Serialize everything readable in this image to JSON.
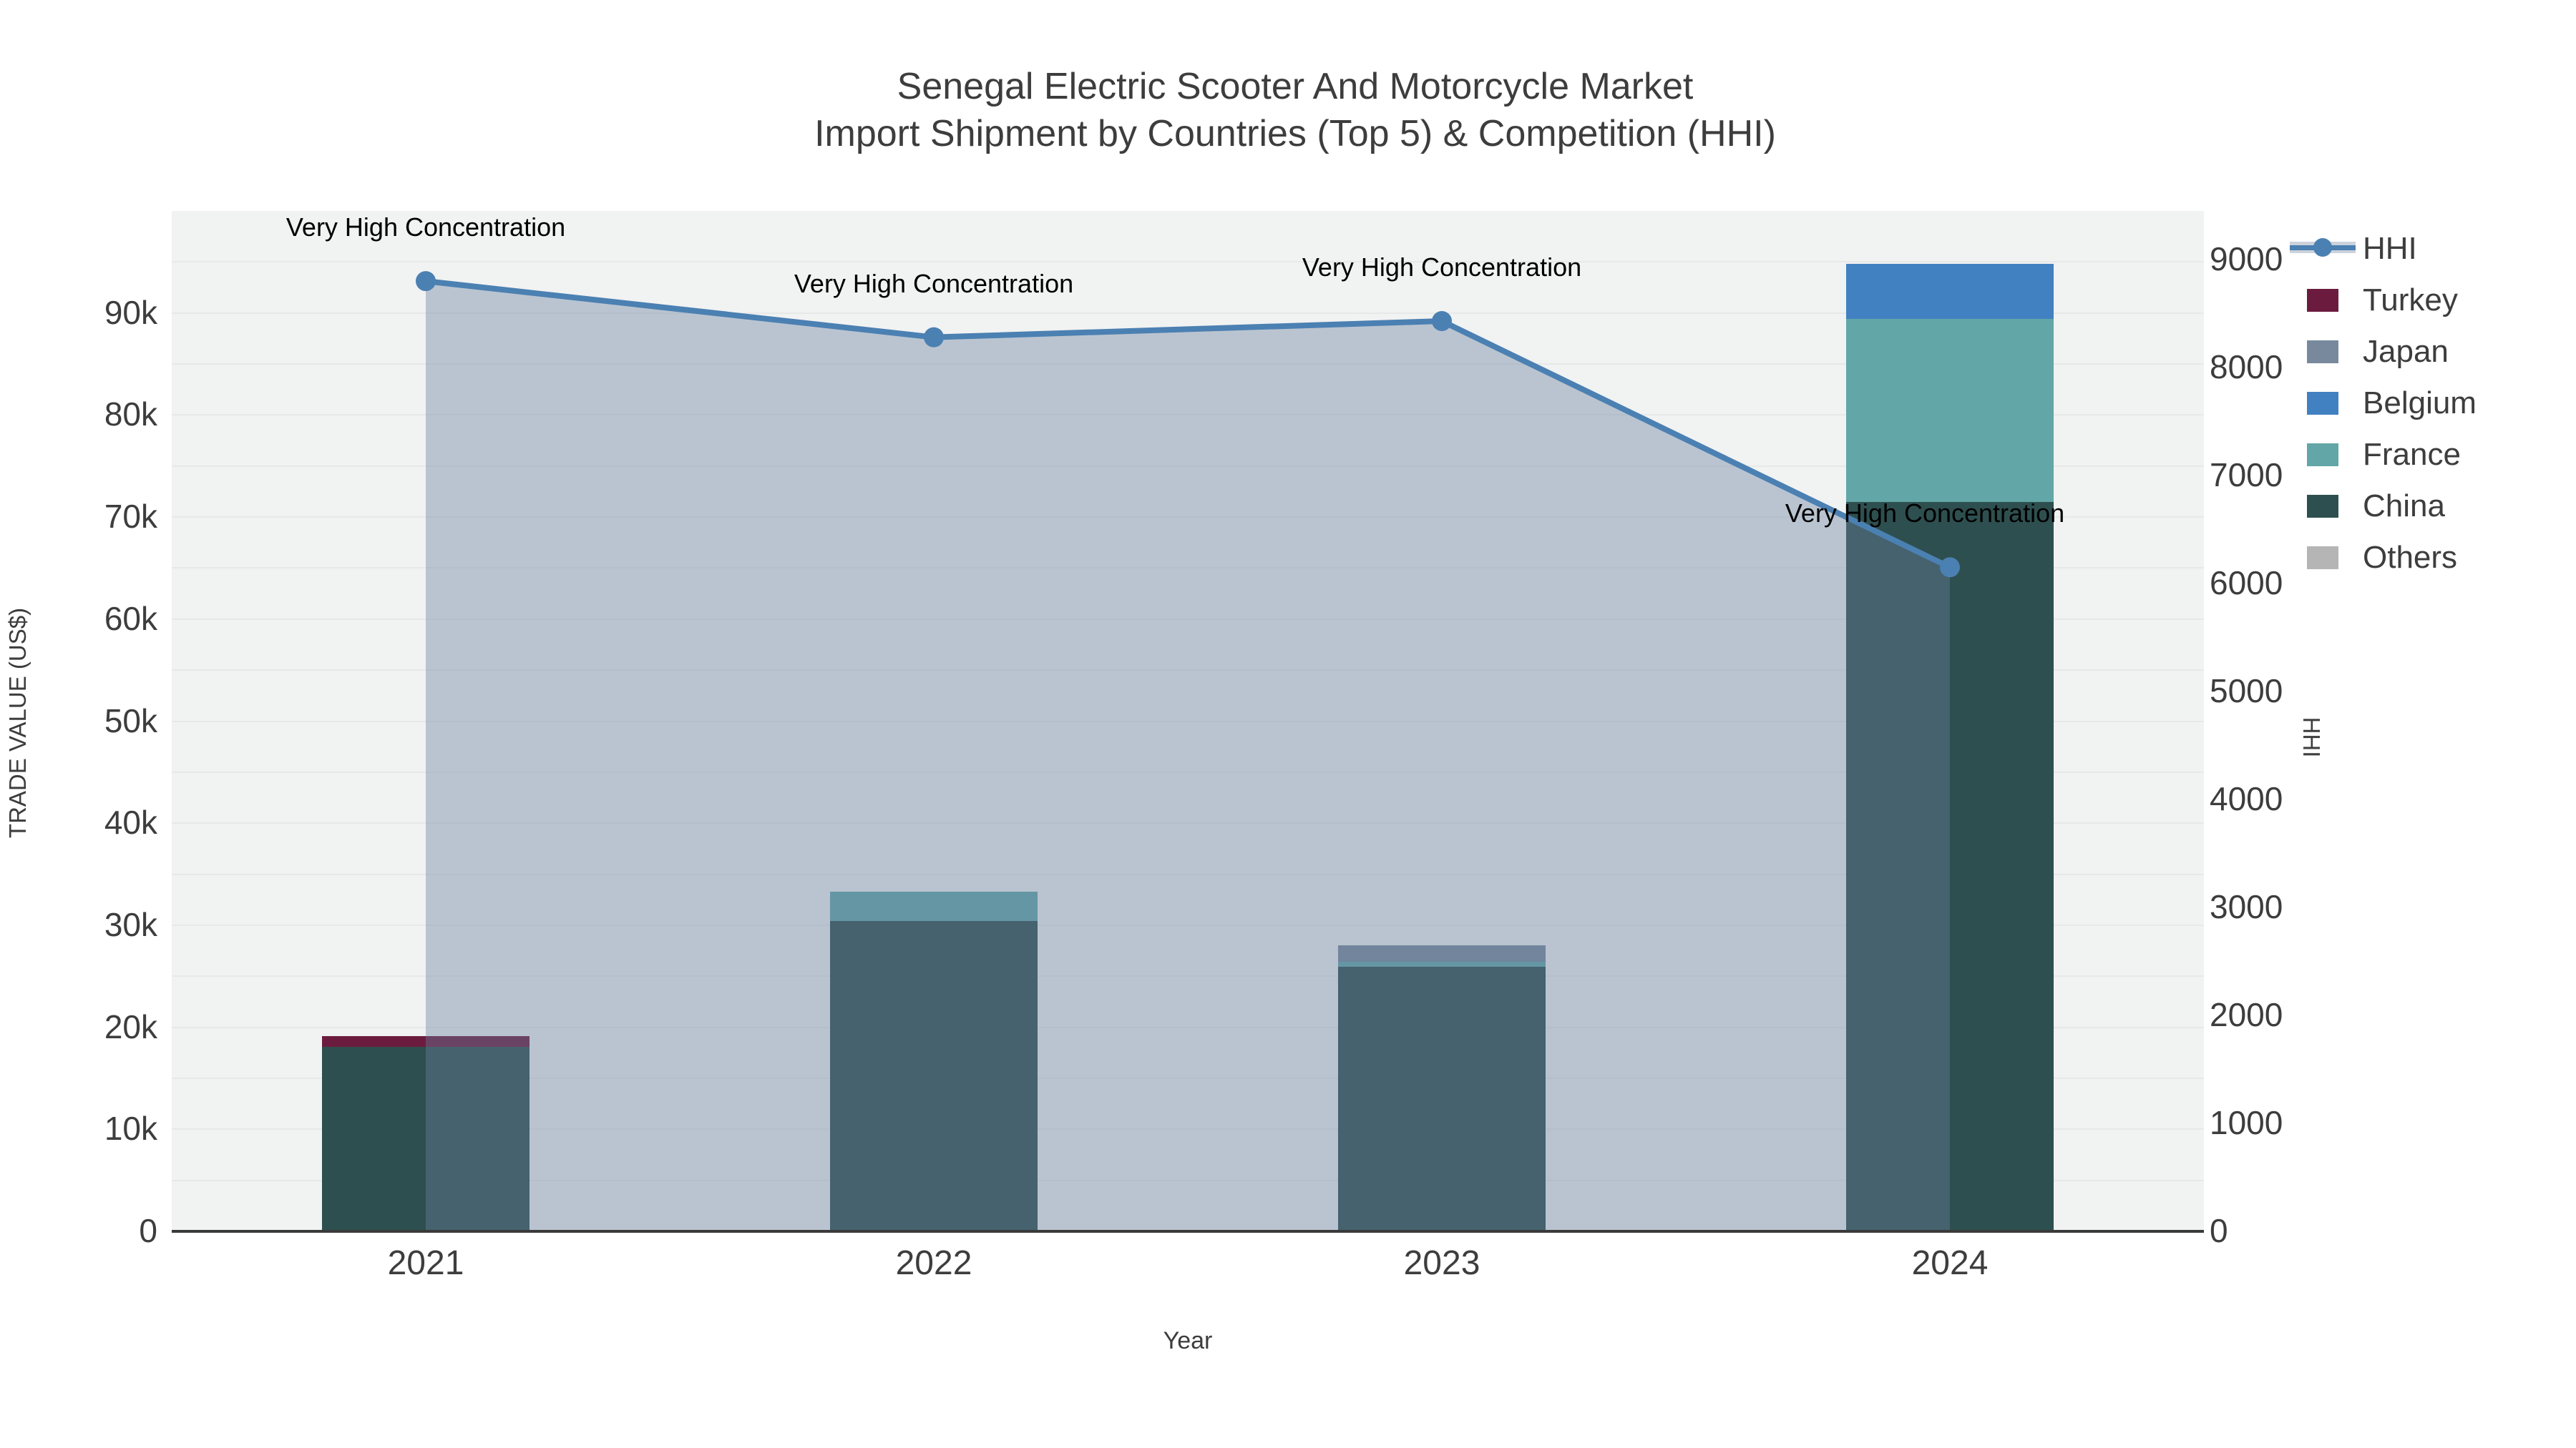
{
  "title": {
    "line1": "Senegal Electric Scooter And Motorcycle Market",
    "line2": "Import Shipment by Countries (Top 5) & Competition (HHI)"
  },
  "axes": {
    "x": {
      "title": "Year",
      "categories": [
        "2021",
        "2022",
        "2023",
        "2024"
      ]
    },
    "left": {
      "title": "TRADE VALUE (US$)",
      "tick_values": [
        0,
        10000,
        20000,
        30000,
        40000,
        50000,
        60000,
        70000,
        80000,
        90000
      ],
      "tick_labels": [
        "0",
        "10k",
        "20k",
        "30k",
        "40k",
        "50k",
        "60k",
        "70k",
        "80k",
        "90k"
      ],
      "max": 100000
    },
    "right": {
      "title": "HHI",
      "tick_values": [
        0,
        1000,
        2000,
        3000,
        4000,
        5000,
        6000,
        7000,
        8000,
        9000
      ],
      "tick_labels": [
        "0",
        "1000",
        "2000",
        "3000",
        "4000",
        "5000",
        "6000",
        "7000",
        "8000",
        "9000"
      ],
      "max": 9450
    }
  },
  "legend": {
    "items": [
      {
        "label": "HHI",
        "type": "line",
        "color": "#4b80b2"
      },
      {
        "label": "Turkey",
        "type": "box",
        "color": "#6b1c3e"
      },
      {
        "label": "Japan",
        "type": "box",
        "color": "#78899d"
      },
      {
        "label": "Belgium",
        "type": "box",
        "color": "#4181c2"
      },
      {
        "label": "France",
        "type": "box",
        "color": "#63a6a8"
      },
      {
        "label": "China",
        "type": "box",
        "color": "#2e4f4f"
      },
      {
        "label": "Others",
        "type": "box",
        "color": "#b5b5b5"
      }
    ]
  },
  "chart_data": {
    "type": "bar",
    "variant": "stacked bars (left axis) + line with area fill (right axis)",
    "title": "Senegal Electric Scooter And Motorcycle Market — Import Shipment by Countries (Top 5) & Competition (HHI)",
    "categories": [
      "2021",
      "2022",
      "2023",
      "2024"
    ],
    "stack_order_bottom_to_top": [
      "China",
      "France",
      "Belgium",
      "Japan",
      "Turkey",
      "Others"
    ],
    "series": [
      {
        "name": "China",
        "color": "#2e4f4f",
        "values": [
          18100,
          30400,
          25900,
          71500
        ]
      },
      {
        "name": "France",
        "color": "#63a6a8",
        "values": [
          0,
          2900,
          550,
          17900
        ]
      },
      {
        "name": "Belgium",
        "color": "#4181c2",
        "values": [
          0,
          0,
          0,
          5400
        ]
      },
      {
        "name": "Japan",
        "color": "#78899d",
        "values": [
          0,
          0,
          1600,
          0
        ]
      },
      {
        "name": "Turkey",
        "color": "#6b1c3e",
        "values": [
          1000,
          0,
          0,
          0
        ]
      },
      {
        "name": "Others",
        "color": "#b5b5b5",
        "values": [
          0,
          0,
          0,
          0
        ]
      }
    ],
    "line_series": {
      "name": "HHI",
      "axis": "right",
      "color": "#4b80b2",
      "fill_color": "rgba(106,128,158,0.40)",
      "values": [
        8800,
        8280,
        8430,
        6150
      ]
    },
    "annotations": [
      {
        "text": "Very High Concentration",
        "category": "2021",
        "dx": 0
      },
      {
        "text": "Very High Concentration",
        "category": "2022",
        "dx": 0
      },
      {
        "text": "Very High Concentration",
        "category": "2023",
        "dx": 0
      },
      {
        "text": "Very High Concentration",
        "category": "2024",
        "dx": -35
      }
    ],
    "xlabel": "Year",
    "ylabel_left": "TRADE VALUE (US$)",
    "ylabel_right": "HHI",
    "ylim_left": [
      0,
      100000
    ],
    "ylim_right": [
      0,
      9450
    ],
    "grid": true,
    "legend_position": "right"
  }
}
